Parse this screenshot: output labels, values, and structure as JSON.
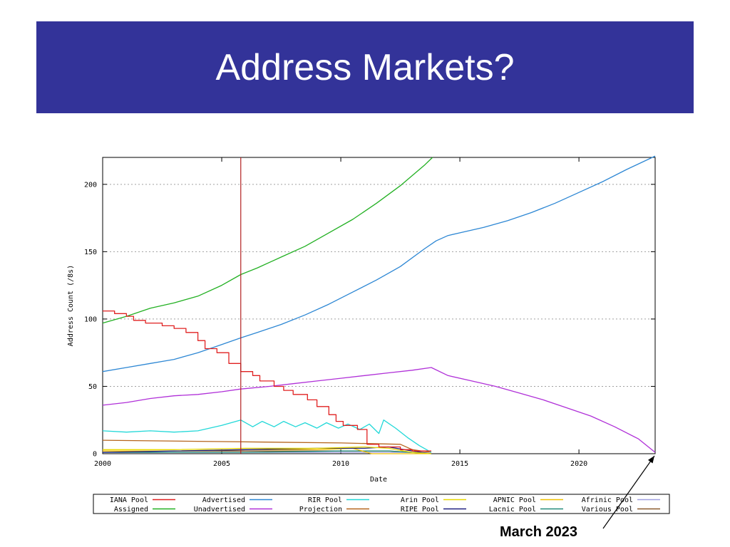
{
  "slide": {
    "title": "Address Markets?"
  },
  "annotation": {
    "label": "March 2023",
    "x": 2023.2,
    "y": 0
  },
  "chart_data": {
    "type": "line",
    "xlabel": "Date",
    "ylabel": "Address Count (/8s)",
    "xlim": [
      2000,
      2023.2
    ],
    "ylim": [
      0,
      220
    ],
    "x_ticks": [
      2000,
      2005,
      2010,
      2015,
      2020
    ],
    "y_ticks": [
      0,
      50,
      100,
      150,
      200
    ],
    "grid": "horizontal dashed",
    "legend_position": "bottom",
    "vertical_marker": {
      "x": 2005.8,
      "color": "#b22222"
    },
    "series": [
      {
        "name": "IANA Pool",
        "color": "#e02020",
        "step": true,
        "points": [
          [
            2000,
            106
          ],
          [
            2000.5,
            106
          ],
          [
            2000.5,
            104
          ],
          [
            2001,
            104
          ],
          [
            2001,
            102
          ],
          [
            2001.3,
            102
          ],
          [
            2001.3,
            99
          ],
          [
            2001.8,
            99
          ],
          [
            2001.8,
            97
          ],
          [
            2002.5,
            97
          ],
          [
            2002.5,
            95
          ],
          [
            2003,
            95
          ],
          [
            2003,
            93
          ],
          [
            2003.5,
            93
          ],
          [
            2003.5,
            90
          ],
          [
            2004,
            90
          ],
          [
            2004,
            84
          ],
          [
            2004.3,
            84
          ],
          [
            2004.3,
            78
          ],
          [
            2004.8,
            78
          ],
          [
            2004.8,
            75
          ],
          [
            2005.3,
            75
          ],
          [
            2005.3,
            67
          ],
          [
            2005.8,
            67
          ],
          [
            2005.8,
            61
          ],
          [
            2006.3,
            61
          ],
          [
            2006.3,
            58
          ],
          [
            2006.6,
            58
          ],
          [
            2006.6,
            54
          ],
          [
            2007.2,
            54
          ],
          [
            2007.2,
            50
          ],
          [
            2007.6,
            50
          ],
          [
            2007.6,
            47
          ],
          [
            2008,
            47
          ],
          [
            2008,
            44
          ],
          [
            2008.6,
            44
          ],
          [
            2008.6,
            40
          ],
          [
            2009,
            40
          ],
          [
            2009,
            35
          ],
          [
            2009.5,
            35
          ],
          [
            2009.5,
            29
          ],
          [
            2009.8,
            29
          ],
          [
            2009.8,
            24
          ],
          [
            2010.1,
            24
          ],
          [
            2010.1,
            21
          ],
          [
            2010.7,
            21
          ],
          [
            2010.7,
            18
          ],
          [
            2011.1,
            18
          ],
          [
            2011.1,
            7
          ],
          [
            2011.6,
            7
          ],
          [
            2011.6,
            5
          ],
          [
            2012.5,
            5
          ],
          [
            2012.5,
            3
          ],
          [
            2013,
            3
          ],
          [
            2013,
            2
          ],
          [
            2013.8,
            2
          ]
        ]
      },
      {
        "name": "Assigned",
        "color": "#22b022",
        "points": [
          [
            2000,
            97
          ],
          [
            2001,
            102
          ],
          [
            2002,
            108
          ],
          [
            2003,
            112
          ],
          [
            2004,
            117
          ],
          [
            2005,
            125
          ],
          [
            2005.8,
            133
          ],
          [
            2006.5,
            138
          ],
          [
            2007.5,
            146
          ],
          [
            2008.5,
            154
          ],
          [
            2009.5,
            164
          ],
          [
            2010.5,
            174
          ],
          [
            2011.5,
            186
          ],
          [
            2012.5,
            199
          ],
          [
            2013.5,
            214
          ],
          [
            2013.85,
            220
          ]
        ]
      },
      {
        "name": "Advertised",
        "color": "#2d87d4",
        "points": [
          [
            2000,
            61
          ],
          [
            2001,
            64
          ],
          [
            2002,
            67
          ],
          [
            2003,
            70
          ],
          [
            2004,
            75
          ],
          [
            2005,
            81
          ],
          [
            2005.8,
            86
          ],
          [
            2006.5,
            90
          ],
          [
            2007.5,
            96
          ],
          [
            2008.5,
            103
          ],
          [
            2009.5,
            111
          ],
          [
            2010.5,
            120
          ],
          [
            2011.5,
            129
          ],
          [
            2012.5,
            139
          ],
          [
            2013.5,
            152
          ],
          [
            2014,
            158
          ],
          [
            2014.5,
            162
          ],
          [
            2015,
            164
          ],
          [
            2016,
            168
          ],
          [
            2017,
            173
          ],
          [
            2018,
            179
          ],
          [
            2019,
            186
          ],
          [
            2020,
            194
          ],
          [
            2021,
            202
          ],
          [
            2022,
            211
          ],
          [
            2023.2,
            221
          ]
        ]
      },
      {
        "name": "Unadvertised",
        "color": "#b030d8",
        "points": [
          [
            2000,
            36
          ],
          [
            2001,
            38
          ],
          [
            2002,
            41
          ],
          [
            2003,
            43
          ],
          [
            2004,
            44
          ],
          [
            2005,
            46
          ],
          [
            2005.8,
            48
          ],
          [
            2007,
            50
          ],
          [
            2008,
            52
          ],
          [
            2009,
            54
          ],
          [
            2010,
            56
          ],
          [
            2011,
            58
          ],
          [
            2012,
            60
          ],
          [
            2013,
            62
          ],
          [
            2013.8,
            64
          ],
          [
            2014.5,
            58
          ],
          [
            2015.5,
            54
          ],
          [
            2016.5,
            50
          ],
          [
            2017.5,
            45
          ],
          [
            2018.5,
            40
          ],
          [
            2019.5,
            34
          ],
          [
            2020.5,
            28
          ],
          [
            2021.5,
            20
          ],
          [
            2022.5,
            11
          ],
          [
            2023.2,
            1
          ]
        ]
      },
      {
        "name": "RIR Pool",
        "color": "#22d8d8",
        "points": [
          [
            2000,
            17
          ],
          [
            2001,
            16
          ],
          [
            2002,
            17
          ],
          [
            2003,
            16
          ],
          [
            2004,
            17
          ],
          [
            2005,
            21
          ],
          [
            2005.8,
            25
          ],
          [
            2006.3,
            20
          ],
          [
            2006.7,
            24
          ],
          [
            2007.2,
            20
          ],
          [
            2007.6,
            24
          ],
          [
            2008.1,
            20
          ],
          [
            2008.5,
            23
          ],
          [
            2009,
            19
          ],
          [
            2009.4,
            23
          ],
          [
            2009.9,
            19
          ],
          [
            2010.3,
            22
          ],
          [
            2010.8,
            18
          ],
          [
            2011.2,
            22
          ],
          [
            2011.6,
            15
          ],
          [
            2011.8,
            25
          ],
          [
            2012.3,
            19
          ],
          [
            2012.8,
            12
          ],
          [
            2013.3,
            6
          ],
          [
            2013.8,
            1
          ]
        ]
      },
      {
        "name": "Projection",
        "color": "#b5651d",
        "points": [
          [
            2000,
            10
          ],
          [
            2005,
            9
          ],
          [
            2010,
            8
          ],
          [
            2012.5,
            7
          ],
          [
            2013,
            3
          ],
          [
            2013.8,
            1
          ]
        ]
      },
      {
        "name": "Arin Pool",
        "color": "#e8d800",
        "points": [
          [
            2000,
            3
          ],
          [
            2003,
            3
          ],
          [
            2006,
            4
          ],
          [
            2009,
            4
          ],
          [
            2011,
            5
          ],
          [
            2012,
            4
          ],
          [
            2013,
            1
          ],
          [
            2013.8,
            0
          ]
        ]
      },
      {
        "name": "RIPE Pool",
        "color": "#202080",
        "points": [
          [
            2000,
            1
          ],
          [
            2003,
            2
          ],
          [
            2006,
            3
          ],
          [
            2009,
            4
          ],
          [
            2011,
            4
          ],
          [
            2012,
            5
          ],
          [
            2013,
            2
          ],
          [
            2013.8,
            0
          ]
        ]
      },
      {
        "name": "APNIC Pool",
        "color": "#f0c000",
        "points": [
          [
            2000,
            2
          ],
          [
            2003,
            2
          ],
          [
            2006,
            3
          ],
          [
            2009,
            3
          ],
          [
            2010.5,
            4
          ],
          [
            2011.3,
            0
          ],
          [
            2013.8,
            0
          ]
        ]
      },
      {
        "name": "Lacnic Pool",
        "color": "#228b7a",
        "points": [
          [
            2000,
            1
          ],
          [
            2006,
            1
          ],
          [
            2010,
            2
          ],
          [
            2012,
            2
          ],
          [
            2013.8,
            0
          ]
        ]
      },
      {
        "name": "Afrinic Pool",
        "color": "#a0a0e0",
        "points": [
          [
            2000,
            1
          ],
          [
            2006,
            1
          ],
          [
            2010,
            1
          ],
          [
            2013,
            1
          ],
          [
            2013.8,
            0
          ]
        ]
      },
      {
        "name": "Various Pool",
        "color": "#8b5a2b",
        "points": [
          [
            2000,
            2
          ],
          [
            2006,
            2
          ],
          [
            2012,
            2
          ],
          [
            2013,
            1
          ],
          [
            2013.8,
            0
          ]
        ]
      }
    ],
    "legend_rows": [
      [
        "IANA Pool",
        "Advertised",
        "RIR Pool",
        "Arin Pool",
        "APNIC Pool",
        "Afrinic Pool"
      ],
      [
        "Assigned",
        "Unadvertised",
        "Projection",
        "RIPE Pool",
        "Lacnic Pool",
        "Various Pool"
      ]
    ]
  }
}
